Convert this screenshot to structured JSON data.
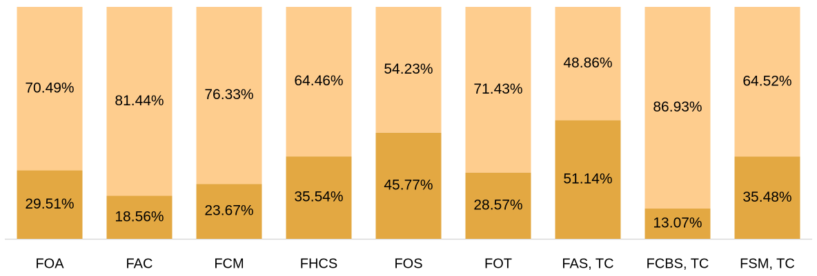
{
  "chart_data": {
    "type": "stacked_bar",
    "categories": [
      "FOA",
      "FAC",
      "FCM",
      "FHCS",
      "FOS",
      "FOT",
      "FAS, TC",
      "FCBS, TC",
      "FSM, TC"
    ],
    "series": [
      {
        "color": "#e3a842",
        "values": [
          29.51,
          18.56,
          23.67,
          35.54,
          45.77,
          28.57,
          51.14,
          13.07,
          35.48
        ],
        "value_labels": [
          "29.51%",
          "18.56%",
          "23.67%",
          "35.54%",
          "45.77%",
          "28.57%",
          "51.14%",
          "13.07%",
          "35.48%"
        ]
      },
      {
        "color": "#fecd8e",
        "values": [
          70.49,
          81.44,
          76.33,
          64.46,
          54.23,
          71.43,
          48.86,
          86.93,
          64.52
        ],
        "value_labels": [
          "70.49%",
          "81.44%",
          "76.33%",
          "64.46%",
          "54.23%",
          "71.43%",
          "48.86%",
          "86.93%",
          "64.52%"
        ]
      }
    ],
    "ylim": [
      0,
      100
    ]
  }
}
